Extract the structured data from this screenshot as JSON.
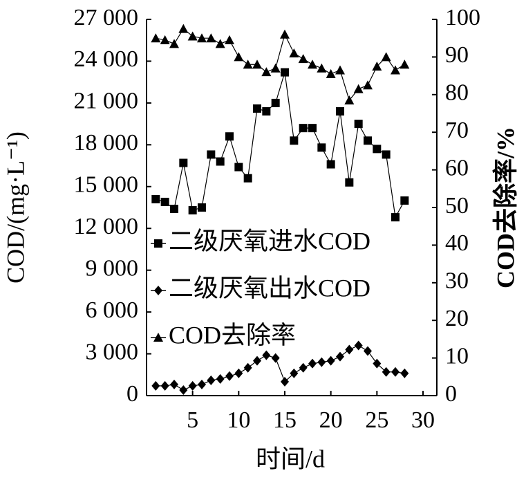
{
  "chart_data": {
    "type": "line",
    "x_label": "时间/d",
    "y_label": "COD/(mg·L⁻¹)",
    "y2_label": "COD去除率/%",
    "x": [
      1,
      2,
      3,
      4,
      5,
      6,
      7,
      8,
      9,
      10,
      11,
      12,
      13,
      14,
      15,
      16,
      17,
      18,
      19,
      20,
      21,
      22,
      23,
      24,
      25,
      26,
      27,
      28
    ],
    "series": [
      {
        "name": "二级厌氧进水COD",
        "color": "#000000",
        "marker": "square",
        "axis": "y",
        "values": [
          14100,
          13900,
          13400,
          16700,
          13300,
          13500,
          17300,
          16800,
          18600,
          16400,
          15600,
          20600,
          20400,
          21000,
          23200,
          18300,
          19200,
          19200,
          17800,
          16600,
          20400,
          15300,
          19500,
          18300,
          17700,
          17300,
          12800,
          14000
        ]
      },
      {
        "name": "二级厌氧出水COD",
        "color": "#000000",
        "marker": "diamond",
        "axis": "y",
        "values": [
          700,
          700,
          800,
          400,
          700,
          800,
          1100,
          1200,
          1400,
          1600,
          2000,
          2500,
          2900,
          2700,
          1000,
          1600,
          2000,
          2300,
          2400,
          2500,
          2800,
          3300,
          3600,
          3200,
          2300,
          1700,
          1700,
          1600
        ]
      },
      {
        "name": "COD去除率",
        "color": "#000000",
        "marker": "triangle",
        "axis": "y2",
        "values": [
          95,
          94.5,
          93.5,
          97.5,
          95.5,
          95,
          95,
          93.5,
          94.5,
          90,
          88,
          88,
          86,
          87,
          96,
          91,
          89.5,
          88,
          87,
          85.5,
          86.5,
          78.5,
          81.5,
          82.5,
          87.5,
          90,
          86.5,
          88
        ]
      }
    ],
    "xlim": [
      0,
      31.5
    ],
    "xticks": [
      5,
      10,
      15,
      20,
      25,
      30
    ],
    "ylim": [
      0,
      27000
    ],
    "yticks": [
      0,
      {
        "value": 3000,
        "label": "3 000"
      },
      {
        "value": 6000,
        "label": "6 000"
      },
      {
        "value": 9000,
        "label": "9 000"
      },
      {
        "value": 12000,
        "label": "12 000"
      },
      {
        "value": 15000,
        "label": "15 000"
      },
      {
        "value": 18000,
        "label": "18 000"
      },
      {
        "value": 21000,
        "label": "21 000"
      },
      {
        "value": 24000,
        "label": "24 000"
      },
      {
        "value": 27000,
        "label": "27 000"
      }
    ],
    "y2lim": [
      0,
      100
    ],
    "y2ticks": [
      0,
      10,
      20,
      30,
      40,
      50,
      60,
      70,
      80,
      90,
      100
    ]
  }
}
